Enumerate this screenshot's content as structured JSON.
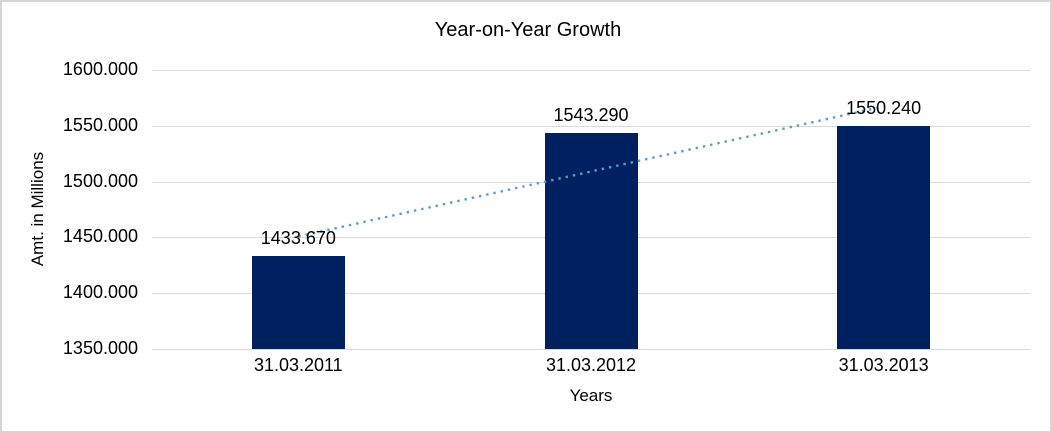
{
  "chart_data": {
    "type": "bar",
    "title": "Year-on-Year Growth",
    "xlabel": "Years",
    "ylabel": "Amt. in Millions",
    "categories": [
      "31.03.2011",
      "31.03.2012",
      "31.03.2013"
    ],
    "values": [
      1433.67,
      1543.29,
      1550.24
    ],
    "data_labels": [
      "1433.670",
      "1543.290",
      "1550.240"
    ],
    "y_tick_labels": [
      "1600.000",
      "1550.000",
      "1500.000",
      "1450.000",
      "1400.000",
      "1350.000"
    ],
    "ylim": [
      1350,
      1600
    ],
    "y_step": 50,
    "grid": true,
    "legend": "none",
    "trendline": {
      "type": "linear",
      "style": "dotted"
    },
    "colors": {
      "bar": "#002060",
      "trendline": "#5b9bd5",
      "gridline": "#d9d9d9",
      "text": "#000000",
      "chart_border": "#d6d6d6"
    }
  }
}
